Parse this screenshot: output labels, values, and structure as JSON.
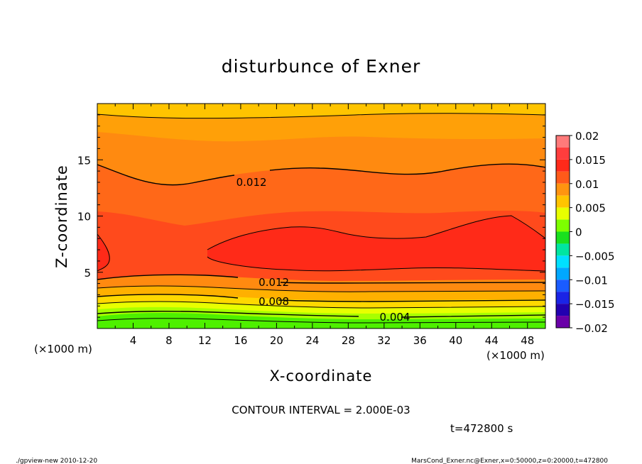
{
  "chart_data": {
    "type": "heatmap",
    "title": "disturbunce of Exner",
    "xlabel": "X-coordinate",
    "ylabel": "Z-coordinate",
    "x_unit": "(×1000 m)",
    "z_unit": "(×1000 m)",
    "xlim": [
      0,
      50
    ],
    "ylim": [
      0,
      20
    ],
    "x_ticks": [
      "4",
      "8",
      "12",
      "16",
      "20",
      "24",
      "28",
      "32",
      "36",
      "40",
      "44",
      "48"
    ],
    "y_ticks": [
      "5",
      "10",
      "15"
    ],
    "contour_interval_text": "CONTOUR INTERVAL = 2.000E-03",
    "time_text": "t=472800 s",
    "contour_labels": [
      {
        "text": "0.012",
        "x": 15.5,
        "z": 13.0
      },
      {
        "text": "0.012",
        "x": 18.0,
        "z": 4.1
      },
      {
        "text": "0.008",
        "x": 18.0,
        "z": 2.4
      },
      {
        "text": "0.004",
        "x": 31.5,
        "z": 1.0
      }
    ],
    "colorbar": {
      "ticks": [
        "0.02",
        "0.015",
        "0.01",
        "0.005",
        "0",
        "−0.005",
        "−0.01",
        "−0.015",
        "−0.02"
      ],
      "levels": [
        {
          "from": 0.0175,
          "to": 0.02,
          "color": "#ff7a7a"
        },
        {
          "from": 0.015,
          "to": 0.0175,
          "color": "#ff3d3d"
        },
        {
          "from": 0.0125,
          "to": 0.015,
          "color": "#ff2a1a"
        },
        {
          "from": 0.01,
          "to": 0.0125,
          "color": "#ff5a1a"
        },
        {
          "from": 0.0075,
          "to": 0.01,
          "color": "#ff9410"
        },
        {
          "from": 0.005,
          "to": 0.0075,
          "color": "#ffc400"
        },
        {
          "from": 0.0025,
          "to": 0.005,
          "color": "#e8ff00"
        },
        {
          "from": 0.0,
          "to": 0.0025,
          "color": "#7dff00"
        },
        {
          "from": -0.0025,
          "to": 0.0,
          "color": "#19e01e"
        },
        {
          "from": -0.005,
          "to": -0.0025,
          "color": "#00e6a0"
        },
        {
          "from": -0.0075,
          "to": -0.005,
          "color": "#00e0ff"
        },
        {
          "from": -0.01,
          "to": -0.0075,
          "color": "#00a8ff"
        },
        {
          "from": -0.0125,
          "to": -0.01,
          "color": "#1a5cff"
        },
        {
          "from": -0.015,
          "to": -0.0125,
          "color": "#1a24e6"
        },
        {
          "from": -0.0175,
          "to": -0.015,
          "color": "#2200b0"
        },
        {
          "from": -0.02,
          "to": -0.0175,
          "color": "#6a00a8"
        }
      ]
    }
  },
  "footer": {
    "left": "./gpview-new   2010-12-20",
    "right": "MarsCond_Exner.nc@Exner,x=0:50000,z=0:20000,t=472800"
  }
}
